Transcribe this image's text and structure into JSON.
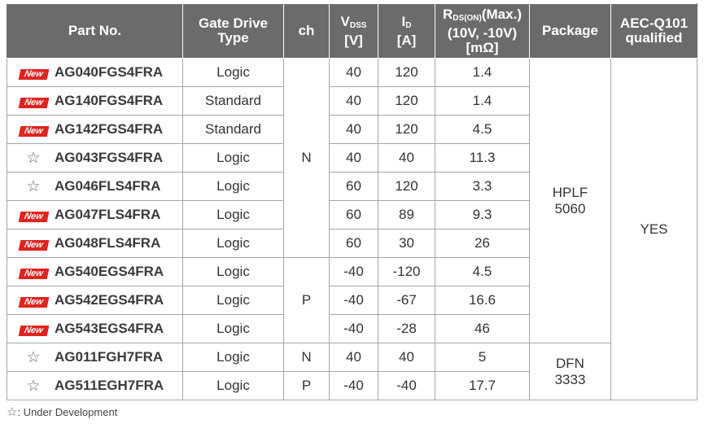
{
  "headers": {
    "part_no": "Part No.",
    "gate_drive_1": "Gate Drive",
    "gate_drive_2": "Type",
    "ch": "ch",
    "vdss_sym": "V",
    "vdss_sub": "DSS",
    "vdss_unit": "[V]",
    "id_sym": "I",
    "id_sub": "D",
    "id_unit": "[A]",
    "rds_sym": "R",
    "rds_sub": "DS(ON)",
    "rds_rest": "(Max.)",
    "rds_cond": "(10V, -10V)",
    "rds_unit": "[mΩ]",
    "package": "Package",
    "aec_1": "AEC-Q101",
    "aec_2": "qualified"
  },
  "badge_text": "New",
  "star_glyph": "☆",
  "rows": [
    {
      "mark": "new",
      "part": "AG040FGS4FRA",
      "gate": "Logic",
      "vdss": "40",
      "id": "120",
      "rds": "1.4"
    },
    {
      "mark": "new",
      "part": "AG140FGS4FRA",
      "gate": "Standard",
      "vdss": "40",
      "id": "120",
      "rds": "1.4"
    },
    {
      "mark": "new",
      "part": "AG142FGS4FRA",
      "gate": "Standard",
      "vdss": "40",
      "id": "120",
      "rds": "4.5"
    },
    {
      "mark": "star",
      "part": "AG043FGS4FRA",
      "gate": "Logic",
      "vdss": "40",
      "id": "40",
      "rds": "11.3"
    },
    {
      "mark": "star",
      "part": "AG046FLS4FRA",
      "gate": "Logic",
      "vdss": "60",
      "id": "120",
      "rds": "3.3"
    },
    {
      "mark": "new",
      "part": "AG047FLS4FRA",
      "gate": "Logic",
      "vdss": "60",
      "id": "89",
      "rds": "9.3"
    },
    {
      "mark": "new",
      "part": "AG048FLS4FRA",
      "gate": "Logic",
      "vdss": "60",
      "id": "30",
      "rds": "26"
    },
    {
      "mark": "new",
      "part": "AG540EGS4FRA",
      "gate": "Logic",
      "vdss": "-40",
      "id": "-120",
      "rds": "4.5"
    },
    {
      "mark": "new",
      "part": "AG542EGS4FRA",
      "gate": "Logic",
      "vdss": "-40",
      "id": "-67",
      "rds": "16.6"
    },
    {
      "mark": "new",
      "part": "AG543EGS4FRA",
      "gate": "Logic",
      "vdss": "-40",
      "id": "-28",
      "rds": "46"
    },
    {
      "mark": "star",
      "part": "AG011FGH7FRA",
      "gate": "Logic",
      "vdss": "40",
      "id": "40",
      "rds": "5"
    },
    {
      "mark": "star",
      "part": "AG511EGH7FRA",
      "gate": "Logic",
      "vdss": "-40",
      "id": "-40",
      "rds": "17.7"
    }
  ],
  "merged": {
    "ch_n_group": "N",
    "ch_p_group": "P",
    "ch_n_single": "N",
    "ch_p_single": "P",
    "package_hplf_1": "HPLF",
    "package_hplf_2": "5060",
    "package_dfn_1": "DFN",
    "package_dfn_2": "3333",
    "aec": "YES"
  },
  "footnote": ": Under Development",
  "colors": {
    "header_bg": "#6b6b6b",
    "new_badge": "#e0231f",
    "border": "#a6a6a6"
  }
}
